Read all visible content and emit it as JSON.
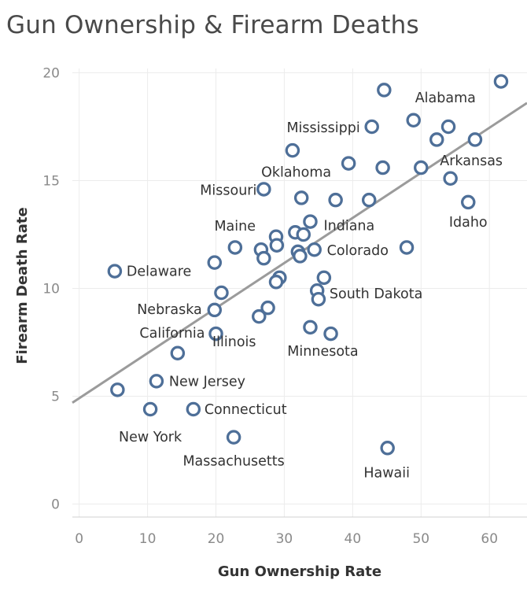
{
  "chart_data": {
    "type": "scatter",
    "title": "Gun Ownership & Firearm Deaths",
    "xlabel": "Gun Ownership Rate",
    "ylabel": "Firearm Death Rate",
    "xlim": [
      -1,
      65.5
    ],
    "ylim": [
      -0.6,
      20.2
    ],
    "x_ticks": [
      "0",
      "10",
      "20",
      "30",
      "40",
      "50",
      "60"
    ],
    "y_ticks": [
      "0",
      "5",
      "10",
      "15",
      "20"
    ],
    "grid": true,
    "marker_color": "#4e6f98",
    "trend_color": "#9b9b9b",
    "trend_line": {
      "from": [
        -1,
        4.7
      ],
      "to": [
        65.5,
        18.6
      ]
    },
    "points": [
      {
        "x": 61.7,
        "y": 19.6,
        "label": ""
      },
      {
        "x": 44.6,
        "y": 19.2,
        "label": ""
      },
      {
        "x": 48.9,
        "y": 17.8,
        "label": "Alabama"
      },
      {
        "x": 42.8,
        "y": 17.5,
        "label": "Mississippi"
      },
      {
        "x": 54.0,
        "y": 17.5,
        "label": ""
      },
      {
        "x": 52.3,
        "y": 16.9,
        "label": ""
      },
      {
        "x": 57.9,
        "y": 16.9,
        "label": ""
      },
      {
        "x": 31.2,
        "y": 16.4,
        "label": ""
      },
      {
        "x": 39.4,
        "y": 15.8,
        "label": "Oklahoma"
      },
      {
        "x": 44.4,
        "y": 15.6,
        "label": ""
      },
      {
        "x": 50.0,
        "y": 15.6,
        "label": "Arkansas"
      },
      {
        "x": 54.3,
        "y": 15.1,
        "label": ""
      },
      {
        "x": 27.0,
        "y": 14.6,
        "label": "Missouri"
      },
      {
        "x": 32.5,
        "y": 14.2,
        "label": ""
      },
      {
        "x": 37.5,
        "y": 14.1,
        "label": ""
      },
      {
        "x": 42.4,
        "y": 14.1,
        "label": ""
      },
      {
        "x": 56.9,
        "y": 14.0,
        "label": "Idaho"
      },
      {
        "x": 33.8,
        "y": 13.1,
        "label": "Indiana"
      },
      {
        "x": 31.6,
        "y": 12.6,
        "label": ""
      },
      {
        "x": 32.8,
        "y": 12.5,
        "label": ""
      },
      {
        "x": 28.8,
        "y": 12.4,
        "label": "Maine"
      },
      {
        "x": 28.9,
        "y": 12.0,
        "label": ""
      },
      {
        "x": 22.8,
        "y": 11.9,
        "label": ""
      },
      {
        "x": 47.9,
        "y": 11.9,
        "label": ""
      },
      {
        "x": 26.6,
        "y": 11.8,
        "label": ""
      },
      {
        "x": 34.4,
        "y": 11.8,
        "label": "Colorado"
      },
      {
        "x": 32.0,
        "y": 11.7,
        "label": ""
      },
      {
        "x": 32.3,
        "y": 11.5,
        "label": ""
      },
      {
        "x": 27.0,
        "y": 11.4,
        "label": ""
      },
      {
        "x": 19.8,
        "y": 11.2,
        "label": ""
      },
      {
        "x": 5.2,
        "y": 10.8,
        "label": "Delaware"
      },
      {
        "x": 35.8,
        "y": 10.5,
        "label": ""
      },
      {
        "x": 29.3,
        "y": 10.5,
        "label": ""
      },
      {
        "x": 28.8,
        "y": 10.3,
        "label": ""
      },
      {
        "x": 34.8,
        "y": 9.9,
        "label": ""
      },
      {
        "x": 20.8,
        "y": 9.8,
        "label": ""
      },
      {
        "x": 35.0,
        "y": 9.5,
        "label": "South Dakota"
      },
      {
        "x": 27.6,
        "y": 9.1,
        "label": ""
      },
      {
        "x": 19.8,
        "y": 9.0,
        "label": "Nebraska"
      },
      {
        "x": 26.3,
        "y": 8.7,
        "label": ""
      },
      {
        "x": 33.8,
        "y": 8.2,
        "label": "Minnesota"
      },
      {
        "x": 20.0,
        "y": 7.9,
        "label": "California"
      },
      {
        "x": 36.8,
        "y": 7.9,
        "label": "Illinois"
      },
      {
        "x": 14.4,
        "y": 7.0,
        "label": ""
      },
      {
        "x": 11.3,
        "y": 5.7,
        "label": "New Jersey"
      },
      {
        "x": 5.6,
        "y": 5.3,
        "label": ""
      },
      {
        "x": 10.4,
        "y": 4.4,
        "label": "New York"
      },
      {
        "x": 16.7,
        "y": 4.4,
        "label": "Connecticut"
      },
      {
        "x": 22.6,
        "y": 3.1,
        "label": "Massachusetts"
      },
      {
        "x": 45.1,
        "y": 2.6,
        "label": "Hawaii"
      }
    ]
  }
}
